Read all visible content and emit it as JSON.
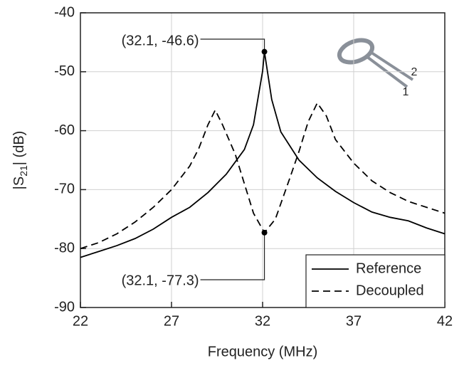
{
  "chart_data": {
    "type": "line",
    "x_label": "Frequency (MHz)",
    "y_label": [
      "|S",
      "21",
      "| (dB)"
    ],
    "xlim": [
      22,
      42
    ],
    "xticks": [
      22,
      27,
      32,
      37,
      42
    ],
    "ylim": [
      -90,
      -40
    ],
    "yticks": [
      -90,
      -80,
      -70,
      -60,
      -50,
      -40
    ],
    "grid": true,
    "legend": "lower right",
    "series": [
      {
        "name": "Reference",
        "color": "#000000",
        "dash": "solid",
        "x": [
          22,
          23,
          24,
          25,
          26,
          27,
          28,
          29,
          30,
          31,
          31.5,
          32,
          32.1,
          32.5,
          33,
          34,
          35,
          36,
          37,
          38,
          39,
          40,
          41,
          42
        ],
        "values": [
          -81.5,
          -80.5,
          -79.5,
          -78.3,
          -76.7,
          -74.7,
          -73,
          -70.5,
          -67.4,
          -63.2,
          -59,
          -49.9,
          -46.6,
          -54.7,
          -60.2,
          -65,
          -68,
          -70.3,
          -72.2,
          -73.8,
          -74.7,
          -75.3,
          -76.5,
          -77.5
        ]
      },
      {
        "name": "Decoupled",
        "color": "#000000",
        "dash": "dashed",
        "x": [
          22,
          23,
          24,
          25,
          26,
          27,
          28,
          28.5,
          29,
          29.4,
          29.8,
          30.5,
          31,
          31.5,
          32.1,
          32.7,
          33.5,
          34,
          34.5,
          35,
          35.5,
          36,
          37,
          38,
          39,
          40,
          41,
          42
        ],
        "values": [
          -80,
          -79,
          -77.5,
          -75.5,
          -73,
          -70,
          -66,
          -63,
          -59,
          -56.5,
          -59,
          -64,
          -69,
          -74,
          -77.3,
          -75,
          -68,
          -63.5,
          -58.5,
          -55.3,
          -57.5,
          -61.5,
          -65.5,
          -68.5,
          -70.5,
          -72,
          -73,
          -74
        ]
      }
    ],
    "annotations": [
      {
        "text": "(32.1, -46.6)",
        "x": 32.1,
        "y": -46.6
      },
      {
        "text": "(32.1, -77.3)",
        "x": 32.1,
        "y": -77.3
      }
    ],
    "inset_labels": [
      "1",
      "2"
    ]
  }
}
